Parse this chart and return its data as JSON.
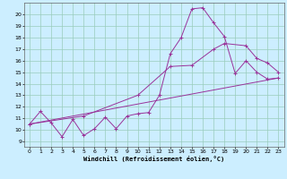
{
  "xlabel": "Windchill (Refroidissement éolien,°C)",
  "bg_color": "#cceeff",
  "grid_color": "#99ccbb",
  "line_color": "#993399",
  "xlim": [
    -0.5,
    23.5
  ],
  "ylim": [
    8.5,
    21.0
  ],
  "xticks": [
    0,
    1,
    2,
    3,
    4,
    5,
    6,
    7,
    8,
    9,
    10,
    11,
    12,
    13,
    14,
    15,
    16,
    17,
    18,
    19,
    20,
    21,
    22,
    23
  ],
  "yticks": [
    9,
    10,
    11,
    12,
    13,
    14,
    15,
    16,
    17,
    18,
    19,
    20
  ],
  "line1_x": [
    0,
    1,
    2,
    3,
    4,
    5,
    6,
    7,
    8,
    9,
    10,
    11,
    12,
    13,
    14,
    15,
    16,
    17,
    18,
    19,
    20,
    21,
    22,
    23
  ],
  "line1_y": [
    10.5,
    11.6,
    10.6,
    9.4,
    10.9,
    9.5,
    10.1,
    11.1,
    10.1,
    11.2,
    11.4,
    11.5,
    13.0,
    16.6,
    18.0,
    20.5,
    20.6,
    19.3,
    18.1,
    14.9,
    16.0,
    15.0,
    14.4,
    14.5
  ],
  "line2_x": [
    0,
    5,
    10,
    13,
    15,
    17,
    18,
    20,
    21,
    22,
    23
  ],
  "line2_y": [
    10.5,
    11.2,
    13.0,
    15.5,
    15.6,
    17.0,
    17.5,
    17.3,
    16.2,
    15.8,
    15.0
  ],
  "line3_x": [
    0,
    23
  ],
  "line3_y": [
    10.5,
    14.5
  ]
}
